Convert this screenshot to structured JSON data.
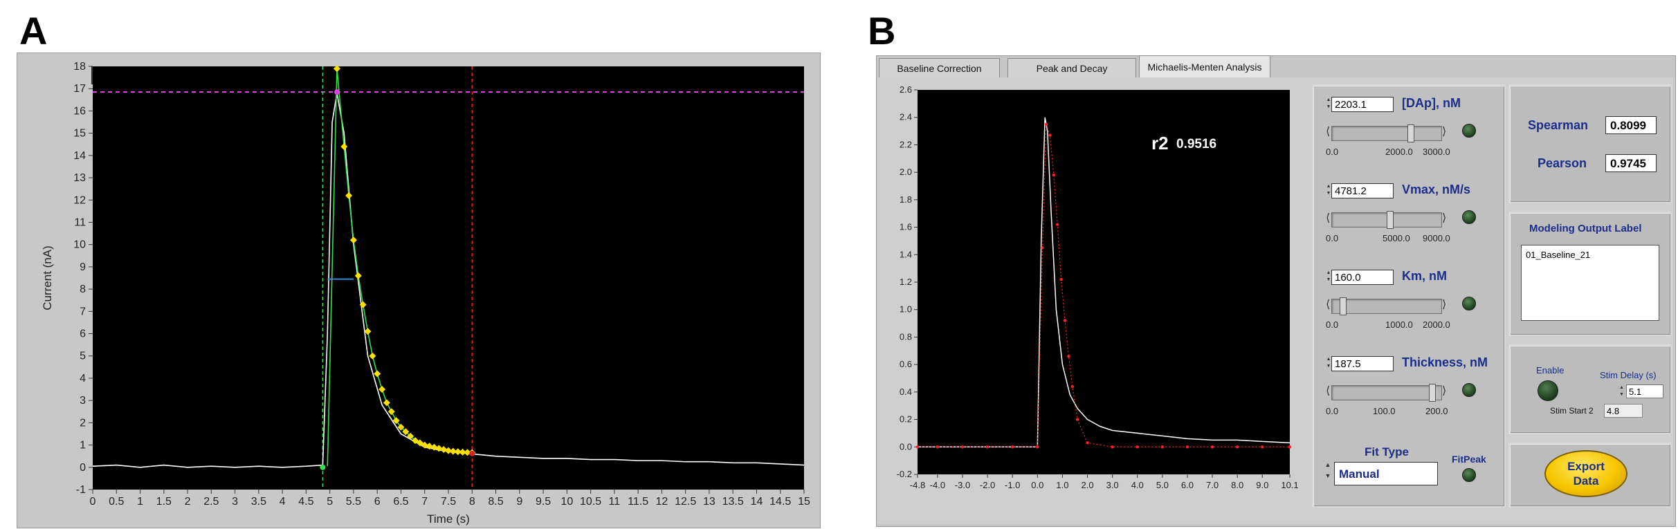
{
  "panel_a": {
    "letter": "A",
    "toolbar_icons": [
      "crosshair-icon",
      "zoom-icon",
      "pan-hand-icon"
    ],
    "chart_data": {
      "type": "line",
      "xlabel": "Time (s)",
      "ylabel": "Current (nA)",
      "xlim": [
        0,
        15
      ],
      "ylim": [
        -1,
        18
      ],
      "x_ticks": [
        "0",
        "0.5",
        "1",
        "1.5",
        "2",
        "2.5",
        "3",
        "3.5",
        "4",
        "4.5",
        "5",
        "5.5",
        "6",
        "6.5",
        "7",
        "7.5",
        "8",
        "8.5",
        "9",
        "9.5",
        "10",
        "10.5",
        "11",
        "11.5",
        "12",
        "12.5",
        "13",
        "13.5",
        "14",
        "14.5",
        "15"
      ],
      "y_ticks": [
        "-1",
        "0",
        "1",
        "2",
        "3",
        "4",
        "5",
        "6",
        "7",
        "8",
        "9",
        "10",
        "11",
        "12",
        "13",
        "14",
        "15",
        "16",
        "17",
        "18"
      ],
      "series": [
        {
          "name": "",
          "color": "#ffffff",
          "x": [
            0,
            0.5,
            1,
            1.5,
            2,
            2.5,
            3,
            3.5,
            4,
            4.5,
            4.85,
            4.95,
            5.05,
            5.15,
            5.3,
            5.5,
            5.8,
            6.1,
            6.5,
            7,
            7.5,
            8,
            8.5,
            9,
            9.5,
            10,
            10.5,
            11,
            11.5,
            12,
            12.5,
            13,
            13.5,
            14,
            14.5,
            15
          ],
          "y": [
            0.05,
            0.1,
            0.0,
            0.1,
            0.0,
            0.05,
            0.0,
            0.05,
            0.0,
            0.05,
            0.1,
            6.0,
            15.5,
            16.8,
            15.0,
            10.0,
            5.0,
            2.8,
            1.5,
            0.9,
            0.7,
            0.6,
            0.5,
            0.45,
            0.4,
            0.4,
            0.35,
            0.35,
            0.3,
            0.3,
            0.25,
            0.25,
            0.2,
            0.2,
            0.15,
            0.1
          ]
        },
        {
          "name": "",
          "color": "#ffe000",
          "x": [
            5.15,
            5.3,
            5.4,
            5.5,
            5.6,
            5.7,
            5.8,
            5.9,
            6.0,
            6.1,
            6.2,
            6.3,
            6.4,
            6.5,
            6.6,
            6.7,
            6.8,
            6.9,
            7.0,
            7.1,
            7.2,
            7.3,
            7.4,
            7.5,
            7.6,
            7.7,
            7.8,
            7.9,
            8.0
          ],
          "y": [
            17.9,
            14.4,
            12.2,
            10.2,
            8.6,
            7.3,
            6.1,
            5.0,
            4.2,
            3.5,
            2.9,
            2.5,
            2.1,
            1.8,
            1.6,
            1.4,
            1.2,
            1.1,
            1.0,
            0.95,
            0.9,
            0.85,
            0.8,
            0.75,
            0.72,
            0.7,
            0.68,
            0.67,
            0.66
          ]
        }
      ],
      "fit_color": "#35e04d",
      "threshold_y": 16.85,
      "threshold_color": "#e040e0",
      "cursor_start_x": 4.85,
      "cursor_start_color": "#35e04d",
      "cursor_end_x": 8.0,
      "cursor_end_color": "#e02020",
      "half_width": {
        "x_start": 4.95,
        "x_end": 5.5,
        "y": 8.45,
        "color": "#3a8ad8"
      }
    }
  },
  "panel_b": {
    "letter": "B",
    "tabs": [
      "Baseline Correction",
      "Peak and Decay",
      "Michaelis-Menten Analysis"
    ],
    "active_tab": 2,
    "r2_label": "r2",
    "r2_value": "0.9516",
    "chart_data": {
      "type": "line",
      "xlim": [
        -4.8,
        10.1
      ],
      "ylim": [
        -0.2,
        2.6
      ],
      "x_ticks": [
        "-4.8",
        "-4.0",
        "-3.0",
        "-2.0",
        "-1.0",
        "0.0",
        "1.0",
        "2.0",
        "3.0",
        "4.0",
        "5.0",
        "6.0",
        "7.0",
        "8.0",
        "9.0",
        "10.1"
      ],
      "y_ticks": [
        "-0.2",
        "0.0",
        "0.2",
        "0.4",
        "0.6",
        "0.8",
        "1.0",
        "1.2",
        "1.4",
        "1.6",
        "1.8",
        "2.0",
        "2.2",
        "2.4",
        "2.6"
      ],
      "series": [
        {
          "name": "",
          "color": "#ffffff",
          "x": [
            -4.8,
            -3,
            -1,
            0.0,
            0.15,
            0.3,
            0.4,
            0.55,
            0.75,
            1.0,
            1.3,
            1.6,
            2.0,
            2.5,
            3.0,
            4,
            5,
            6,
            7,
            8,
            9,
            10.1
          ],
          "y": [
            0.0,
            0.0,
            0.0,
            0.0,
            1.5,
            2.4,
            2.3,
            1.7,
            1.0,
            0.6,
            0.38,
            0.28,
            0.2,
            0.15,
            0.12,
            0.1,
            0.08,
            0.06,
            0.05,
            0.05,
            0.04,
            0.03
          ]
        },
        {
          "name": "",
          "color": "#ff2020",
          "x": [
            -4.8,
            -4,
            -3,
            -2,
            -1,
            0,
            0.2,
            0.35,
            0.5,
            0.65,
            0.8,
            0.95,
            1.1,
            1.25,
            1.4,
            1.6,
            2,
            3,
            4,
            5,
            6,
            7,
            8,
            9,
            10.1
          ],
          "y": [
            0.0,
            0.0,
            0.0,
            0.0,
            0.0,
            0.0,
            1.45,
            2.35,
            2.27,
            1.98,
            1.62,
            1.22,
            0.92,
            0.66,
            0.44,
            0.2,
            0.03,
            0.0,
            0.0,
            0.0,
            0.0,
            0.0,
            0.0,
            0.0,
            0.0
          ]
        }
      ]
    },
    "params": [
      {
        "value": "2203.1",
        "label": "[DAp], nM",
        "ticks": [
          "0.0",
          "2000.0",
          "3000.0"
        ],
        "fraction": 0.73
      },
      {
        "value": "4781.2",
        "label": "Vmax, nM/s",
        "ticks": [
          "0.0",
          "5000.0",
          "9000.0"
        ],
        "fraction": 0.53
      },
      {
        "value": "160.0",
        "label": "Km, nM",
        "ticks": [
          "0.0",
          "1000.0",
          "2000.0"
        ],
        "fraction": 0.08
      },
      {
        "value": "187.5",
        "label": "Thickness, nM",
        "ticks": [
          "0.0",
          "100.0",
          "200.0"
        ],
        "fraction": 0.94
      }
    ],
    "fit_type": {
      "label": "Fit Type",
      "value": "Manual"
    },
    "fitpeak_label": "FitPeak",
    "stats": {
      "spearman_label": "Spearman",
      "spearman_value": "0.8099",
      "pearson_label": "Pearson",
      "pearson_value": "0.9745"
    },
    "output_label": {
      "title": "Modeling Output Label",
      "value": "01_Baseline_21"
    },
    "stim": {
      "enable_label": "Enable",
      "stim_delay_label": "Stim Delay (s)",
      "stim_delay_value": "5.1",
      "stim_start2_label": "Stim Start 2",
      "stim_start2_value": "4.8"
    },
    "export_label": "Export Data"
  }
}
